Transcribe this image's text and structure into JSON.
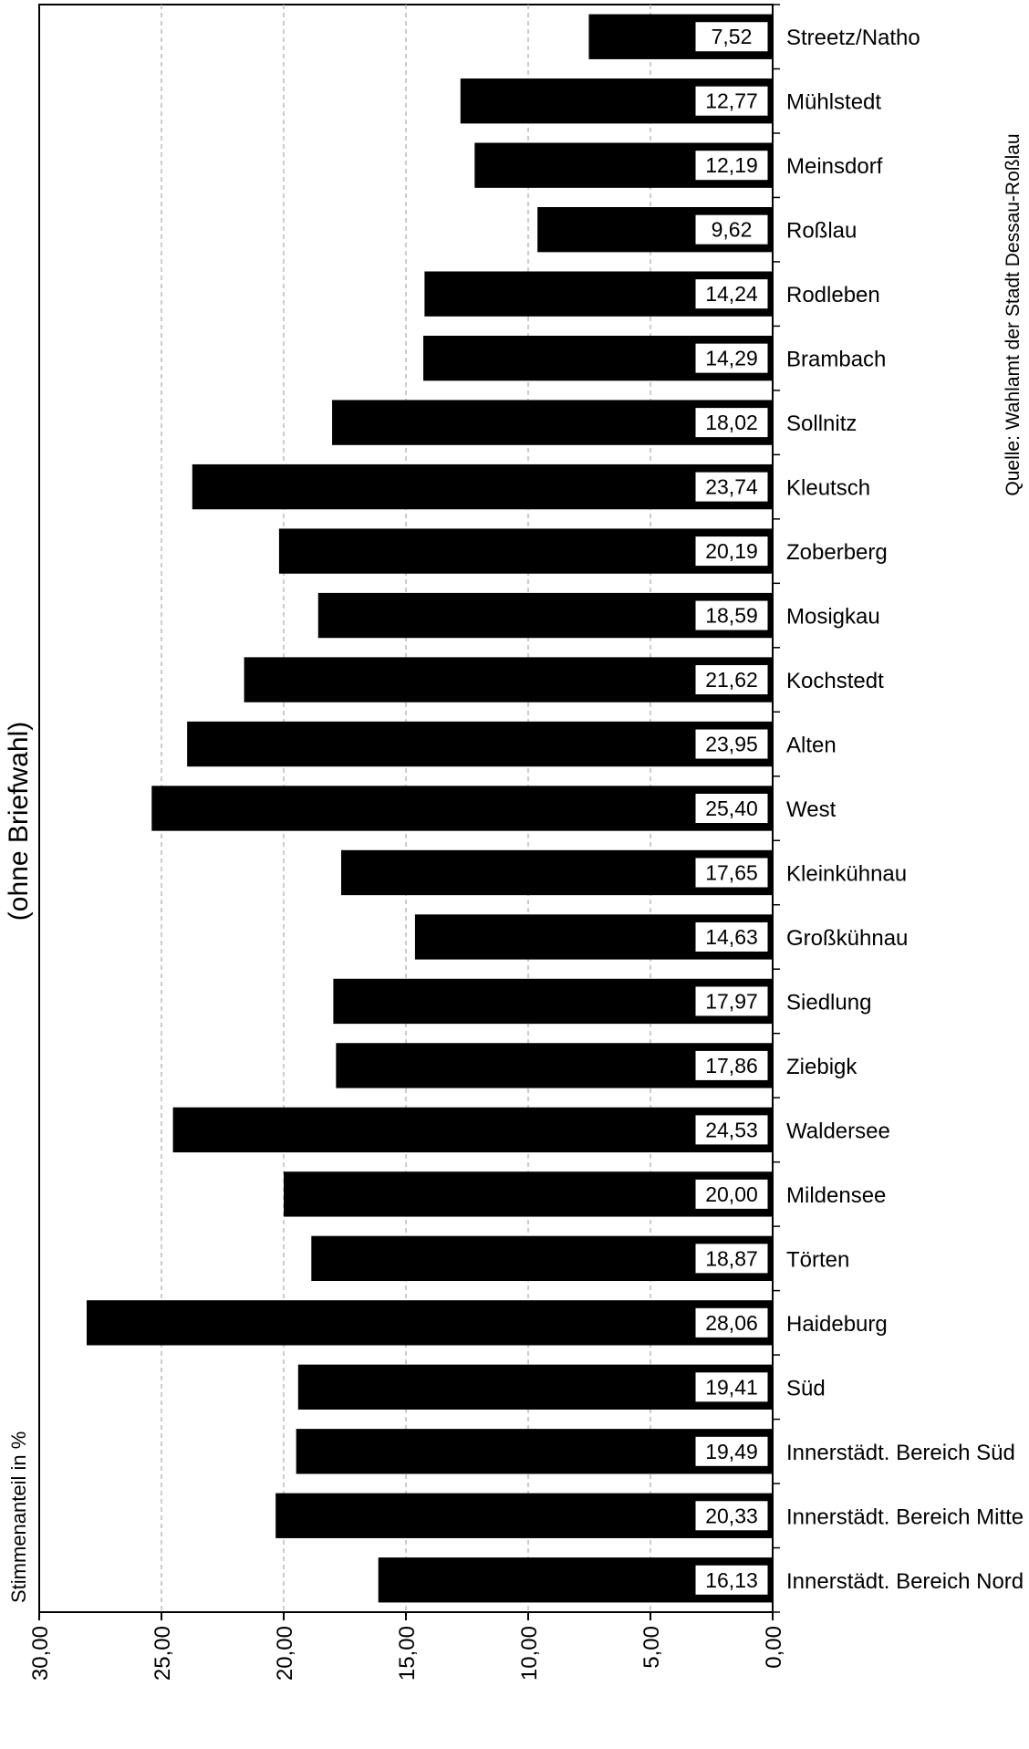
{
  "chart_data": {
    "type": "bar",
    "orientation": "horizontal-reversed",
    "ylabel": "Stimmenanteil in %",
    "side_title": "(ohne Briefwahl)",
    "source": "Quelle: Wahlamt der Stadt Dessau-Roßlau",
    "xlim": [
      0,
      30
    ],
    "ticks": [
      {
        "value": 30,
        "label": "30,00"
      },
      {
        "value": 25,
        "label": "25,00"
      },
      {
        "value": 20,
        "label": "20,00"
      },
      {
        "value": 15,
        "label": "15,00"
      },
      {
        "value": 10,
        "label": "10,00"
      },
      {
        "value": 5,
        "label": "5,00"
      },
      {
        "value": 0,
        "label": "0,00"
      }
    ],
    "grid": "vertical dashed",
    "bar_color": "#000000",
    "categories": [
      "Streetz/Natho",
      "Mühlstedt",
      "Meinsdorf",
      "Roßlau",
      "Rodleben",
      "Brambach",
      "Sollnitz",
      "Kleutsch",
      "Zoberberg",
      "Mosigkau",
      "Kochstedt",
      "Alten",
      "West",
      "Kleinkühnau",
      "Großkühnau",
      "Siedlung",
      "Ziebigk",
      "Waldersee",
      "Mildensee",
      "Törten",
      "Haideburg",
      "Süd",
      "Innerstädt. Bereich Süd",
      "Innerstädt. Bereich Mitte",
      "Innerstädt. Bereich Nord"
    ],
    "values": [
      7.52,
      12.77,
      12.19,
      9.62,
      14.24,
      14.29,
      18.02,
      23.74,
      20.19,
      18.59,
      21.62,
      23.95,
      25.4,
      17.65,
      14.63,
      17.97,
      17.86,
      24.53,
      20.0,
      18.87,
      28.06,
      19.41,
      19.49,
      20.33,
      16.13
    ],
    "value_labels": [
      "7,52",
      "12,77",
      "12,19",
      "9,62",
      "14,24",
      "14,29",
      "18,02",
      "23,74",
      "20,19",
      "18,59",
      "21,62",
      "23,95",
      "25,40",
      "17,65",
      "14,63",
      "17,97",
      "17,86",
      "24,53",
      "20,00",
      "18,87",
      "28,06",
      "19,41",
      "19,49",
      "20,33",
      "16,13"
    ]
  }
}
